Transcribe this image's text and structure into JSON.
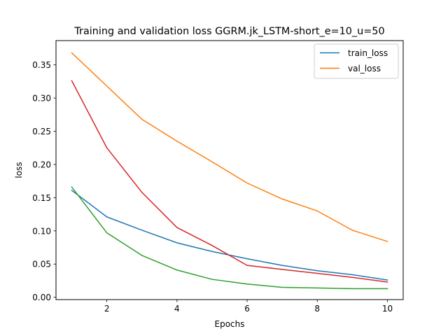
{
  "chart_data": {
    "type": "line",
    "title": "Training and validation loss GGRM.jk_LSTM-short_e=10_u=50",
    "xlabel": "Epochs",
    "ylabel": "loss",
    "xlim": [
      0.55,
      10.45
    ],
    "ylim": [
      -0.0035,
      0.3865
    ],
    "xticks": [
      2,
      4,
      6,
      8,
      10
    ],
    "xtick_labels": [
      "2",
      "4",
      "6",
      "8",
      "10"
    ],
    "yticks": [
      0.0,
      0.05,
      0.1,
      0.15,
      0.2,
      0.25,
      0.3,
      0.35
    ],
    "ytick_labels": [
      "0.00",
      "0.05",
      "0.10",
      "0.15",
      "0.20",
      "0.25",
      "0.30",
      "0.35"
    ],
    "grid": false,
    "legend_position": "top-right",
    "x": [
      1,
      2,
      3,
      4,
      5,
      6,
      7,
      8,
      9,
      10
    ],
    "series": [
      {
        "name": "train_loss",
        "color": "#1f77b4",
        "in_legend": true,
        "values": [
          0.161,
          0.121,
          0.101,
          0.082,
          0.069,
          0.058,
          0.048,
          0.04,
          0.034,
          0.026
        ]
      },
      {
        "name": "val_loss",
        "color": "#ff7f0e",
        "in_legend": true,
        "values": [
          0.368,
          0.318,
          0.268,
          0.235,
          0.204,
          0.172,
          0.148,
          0.13,
          0.101,
          0.084
        ]
      },
      {
        "color": "#d62728",
        "in_legend": false,
        "values": [
          0.326,
          0.225,
          0.158,
          0.105,
          0.078,
          0.048,
          0.042,
          0.036,
          0.03,
          0.023
        ]
      },
      {
        "color": "#2ca02c",
        "in_legend": false,
        "values": [
          0.166,
          0.097,
          0.063,
          0.041,
          0.027,
          0.02,
          0.015,
          0.014,
          0.013,
          0.013
        ]
      }
    ]
  }
}
